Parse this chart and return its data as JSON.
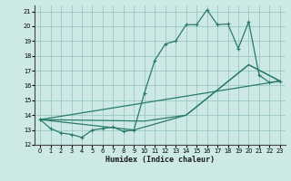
{
  "xlabel": "Humidex (Indice chaleur)",
  "xlim": [
    -0.5,
    23.5
  ],
  "ylim": [
    12,
    21.4
  ],
  "yticks": [
    12,
    13,
    14,
    15,
    16,
    17,
    18,
    19,
    20,
    21
  ],
  "xticks": [
    0,
    1,
    2,
    3,
    4,
    5,
    6,
    7,
    8,
    9,
    10,
    11,
    12,
    13,
    14,
    15,
    16,
    17,
    18,
    19,
    20,
    21,
    22,
    23
  ],
  "bg_color": "#cce9e5",
  "line_color": "#2a7a6a",
  "grid_color": "#9cc8c2",
  "series": [
    {
      "x": [
        0,
        1,
        2,
        3,
        4,
        5,
        6,
        7,
        8,
        9,
        10,
        11,
        12,
        13,
        14,
        15,
        16,
        17,
        18,
        19,
        20,
        21,
        22,
        23
      ],
      "y": [
        13.7,
        13.1,
        12.8,
        12.7,
        12.5,
        13.0,
        13.1,
        13.2,
        12.9,
        13.0,
        15.5,
        17.7,
        18.8,
        19.0,
        20.1,
        20.1,
        21.1,
        20.1,
        20.15,
        18.5,
        20.3,
        16.7,
        16.2,
        16.3
      ],
      "marker": "+"
    },
    {
      "x": [
        0,
        23
      ],
      "y": [
        13.7,
        16.3
      ],
      "marker": null
    },
    {
      "x": [
        0,
        10,
        14,
        20,
        23
      ],
      "y": [
        13.7,
        13.6,
        14.0,
        17.4,
        16.3
      ],
      "marker": null
    },
    {
      "x": [
        0,
        9,
        14,
        20,
        23
      ],
      "y": [
        13.7,
        13.0,
        14.0,
        17.4,
        16.3
      ],
      "marker": null
    }
  ]
}
